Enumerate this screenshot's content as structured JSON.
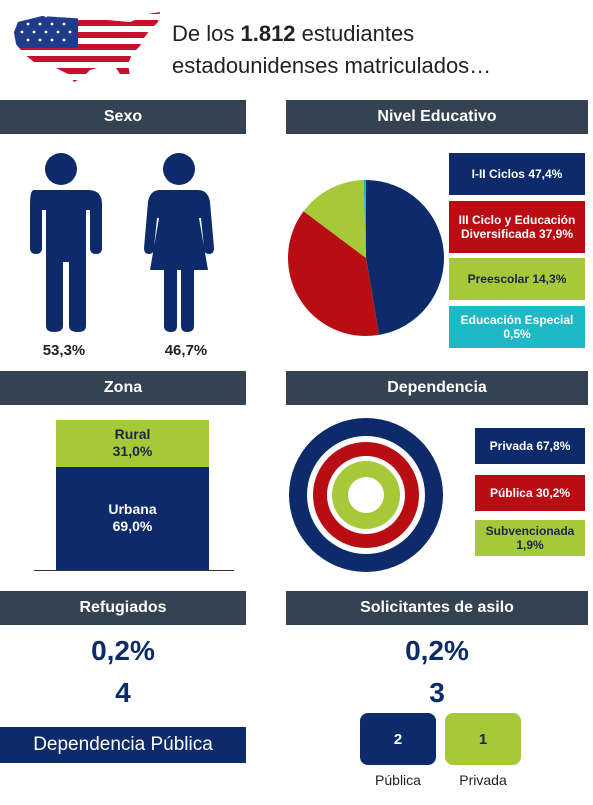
{
  "header": {
    "prefix": "De los ",
    "count": "1.812",
    "suffix_line1": " estudiantes",
    "line2": "estadounidenses matriculados…",
    "flag_icon": "us-map-flag-icon"
  },
  "sections": {
    "sexo": "Sexo",
    "nivel": "Nivel Educativo",
    "zona": "Zona",
    "dependencia": "Dependencia",
    "refugiados": "Refugiados",
    "solicitantes": "Solicitantes de asilo"
  },
  "colors": {
    "navy": "#0d2b6b",
    "red": "#b90d14",
    "green": "#a6c93a",
    "teal": "#1fb8c6",
    "header_bg": "#354252"
  },
  "chart_data": [
    {
      "type": "icon-percent",
      "title": "Sexo",
      "series": [
        {
          "name": "",
          "icon": "male-icon",
          "value": 53.3,
          "label": "53,3%"
        },
        {
          "name": "",
          "icon": "female-icon",
          "value": 46.7,
          "label": "46,7%"
        }
      ]
    },
    {
      "type": "pie",
      "title": "Nivel Educativo",
      "slices": [
        {
          "name": "I-II Ciclos",
          "value": 47.4,
          "label": "I-II Ciclos 47,4%",
          "color": "#0d2b6b"
        },
        {
          "name": "III Ciclo y Educación Diversificada",
          "value": 37.9,
          "label": "III Ciclo y Educación Diversificada 37,9%",
          "color": "#b90d14"
        },
        {
          "name": "Preescolar",
          "value": 14.3,
          "label": "Preescolar 14,3%",
          "color": "#a6c93a"
        },
        {
          "name": "Educación Especial",
          "value": 0.5,
          "label": "Educación Especial 0,5%",
          "color": "#1fb8c6"
        }
      ]
    },
    {
      "type": "bar",
      "title": "Zona",
      "stacked": true,
      "segments": [
        {
          "name": "Rural",
          "value": 31.0,
          "label": "31,0%"
        },
        {
          "name": "Urbana",
          "value": 69.0,
          "label": "69,0%"
        }
      ]
    },
    {
      "type": "donut",
      "title": "Dependencia",
      "rings": [
        {
          "name": "Privada",
          "value": 67.8,
          "label": "Privada 67,8%",
          "color": "#0d2b6b"
        },
        {
          "name": "Pública",
          "value": 30.2,
          "label": "Pública 30,2%",
          "color": "#b90d14"
        },
        {
          "name": "Subvencionada",
          "value": 1.9,
          "label": "Subvencionada 1,9%",
          "color": "#a6c93a"
        }
      ]
    }
  ],
  "refugiados": {
    "percent": "0,2%",
    "count": "4",
    "note": "Dependencia Pública"
  },
  "solicitantes": {
    "percent": "0,2%",
    "count": "3",
    "boxes": [
      {
        "value": "2",
        "label": "Pública"
      },
      {
        "value": "1",
        "label": "Privada"
      }
    ]
  }
}
